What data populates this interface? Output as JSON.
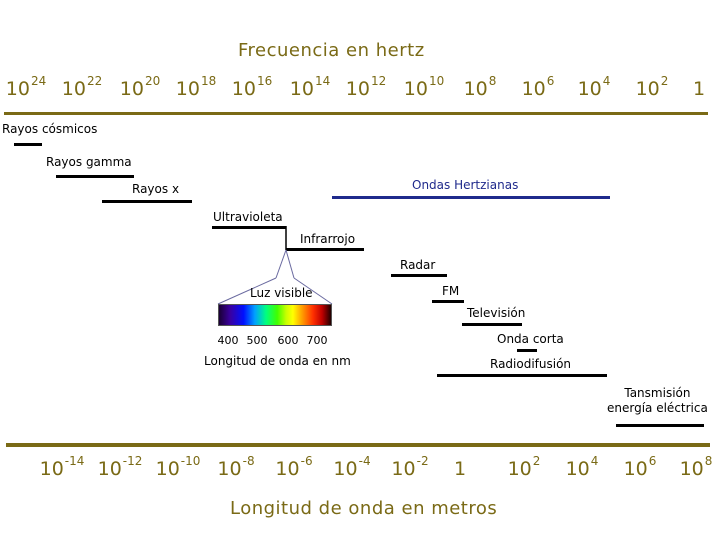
{
  "top_axis": {
    "title": "Frecuencia en hertz",
    "ticks": [
      {
        "base": "10",
        "exp": "24"
      },
      {
        "base": "10",
        "exp": "22"
      },
      {
        "base": "10",
        "exp": "20"
      },
      {
        "base": "10",
        "exp": "18"
      },
      {
        "base": "10",
        "exp": "16"
      },
      {
        "base": "10",
        "exp": "14"
      },
      {
        "base": "10",
        "exp": "12"
      },
      {
        "base": "10",
        "exp": "10"
      },
      {
        "base": "10",
        "exp": "8"
      },
      {
        "base": "10",
        "exp": "6"
      },
      {
        "base": "10",
        "exp": "4"
      },
      {
        "base": "10",
        "exp": "2"
      },
      {
        "base": "1",
        "exp": ""
      }
    ]
  },
  "bottom_axis": {
    "title": "Longitud de onda en metros",
    "ticks": [
      {
        "base": "10",
        "exp": "-14"
      },
      {
        "base": "10",
        "exp": "-12"
      },
      {
        "base": "10",
        "exp": "-10"
      },
      {
        "base": "10",
        "exp": "-8"
      },
      {
        "base": "10",
        "exp": "-6"
      },
      {
        "base": "10",
        "exp": "-4"
      },
      {
        "base": "10",
        "exp": "-2"
      },
      {
        "base": "1",
        "exp": ""
      },
      {
        "base": "10",
        "exp": "2"
      },
      {
        "base": "10",
        "exp": "4"
      },
      {
        "base": "10",
        "exp": "6"
      },
      {
        "base": "10",
        "exp": "8"
      }
    ]
  },
  "bands": [
    {
      "label": "Rayos cósmicos"
    },
    {
      "label": "Rayos gamma"
    },
    {
      "label": "Rayos x"
    },
    {
      "label": "Ondas Hertzianas"
    },
    {
      "label": "Ultravioleta"
    },
    {
      "label": "Infrarrojo"
    },
    {
      "label": "Radar"
    },
    {
      "label": "FM"
    },
    {
      "label": "Televisión"
    },
    {
      "label": "Onda corta"
    },
    {
      "label": "Radiodifusión"
    },
    {
      "label": "Tansmisión\nenergía eléctrica"
    }
  ],
  "visible": {
    "label": "Luz visible",
    "ticks": [
      "400",
      "500",
      "600",
      "700"
    ],
    "axis_label": "Longitud de onda en nm"
  },
  "colors": {
    "axis": "#7a6a16",
    "band": "#000000",
    "hertz_band": "#1f2a8c"
  }
}
